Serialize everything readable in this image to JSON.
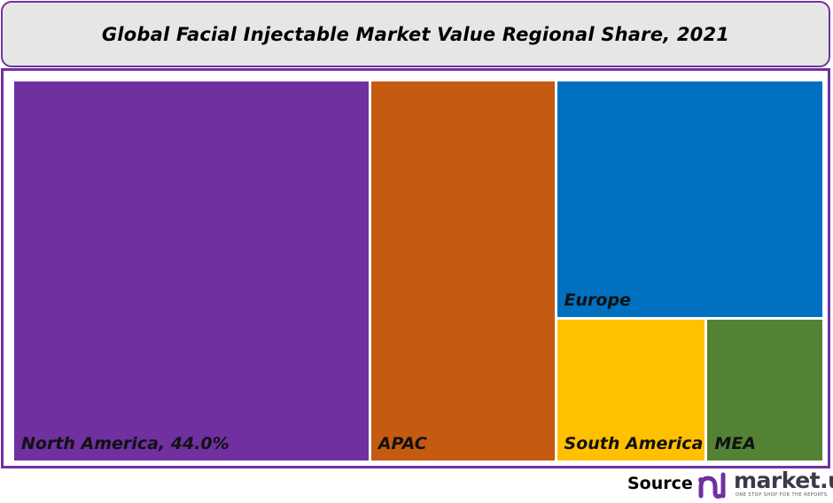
{
  "chart_data": {
    "type": "treemap",
    "title": "Global Facial Injectable Market Value Regional Share, 2021",
    "items": [
      {
        "name": "North America",
        "label": "North America, 44.0%",
        "value": 44.0,
        "color": "#7030a0"
      },
      {
        "name": "APAC",
        "label": "APAC",
        "value": 23.0,
        "color": "#c55a11"
      },
      {
        "name": "Europe",
        "label": "Europe",
        "value": 20.6,
        "color": "#0070c0"
      },
      {
        "name": "South America",
        "label": "South America",
        "value": 7.0,
        "color": "#ffc000"
      },
      {
        "name": "MEA",
        "label": "MEA",
        "value": 5.4,
        "color": "#548235"
      }
    ]
  },
  "footer": {
    "source_label": "Source",
    "logo_text": "market.us",
    "logo_tagline": "ONE STOP SHOP FOR THE REPORTS"
  },
  "colors": {
    "border": "#7030a0",
    "title_bg": "#e7e6e6"
  }
}
